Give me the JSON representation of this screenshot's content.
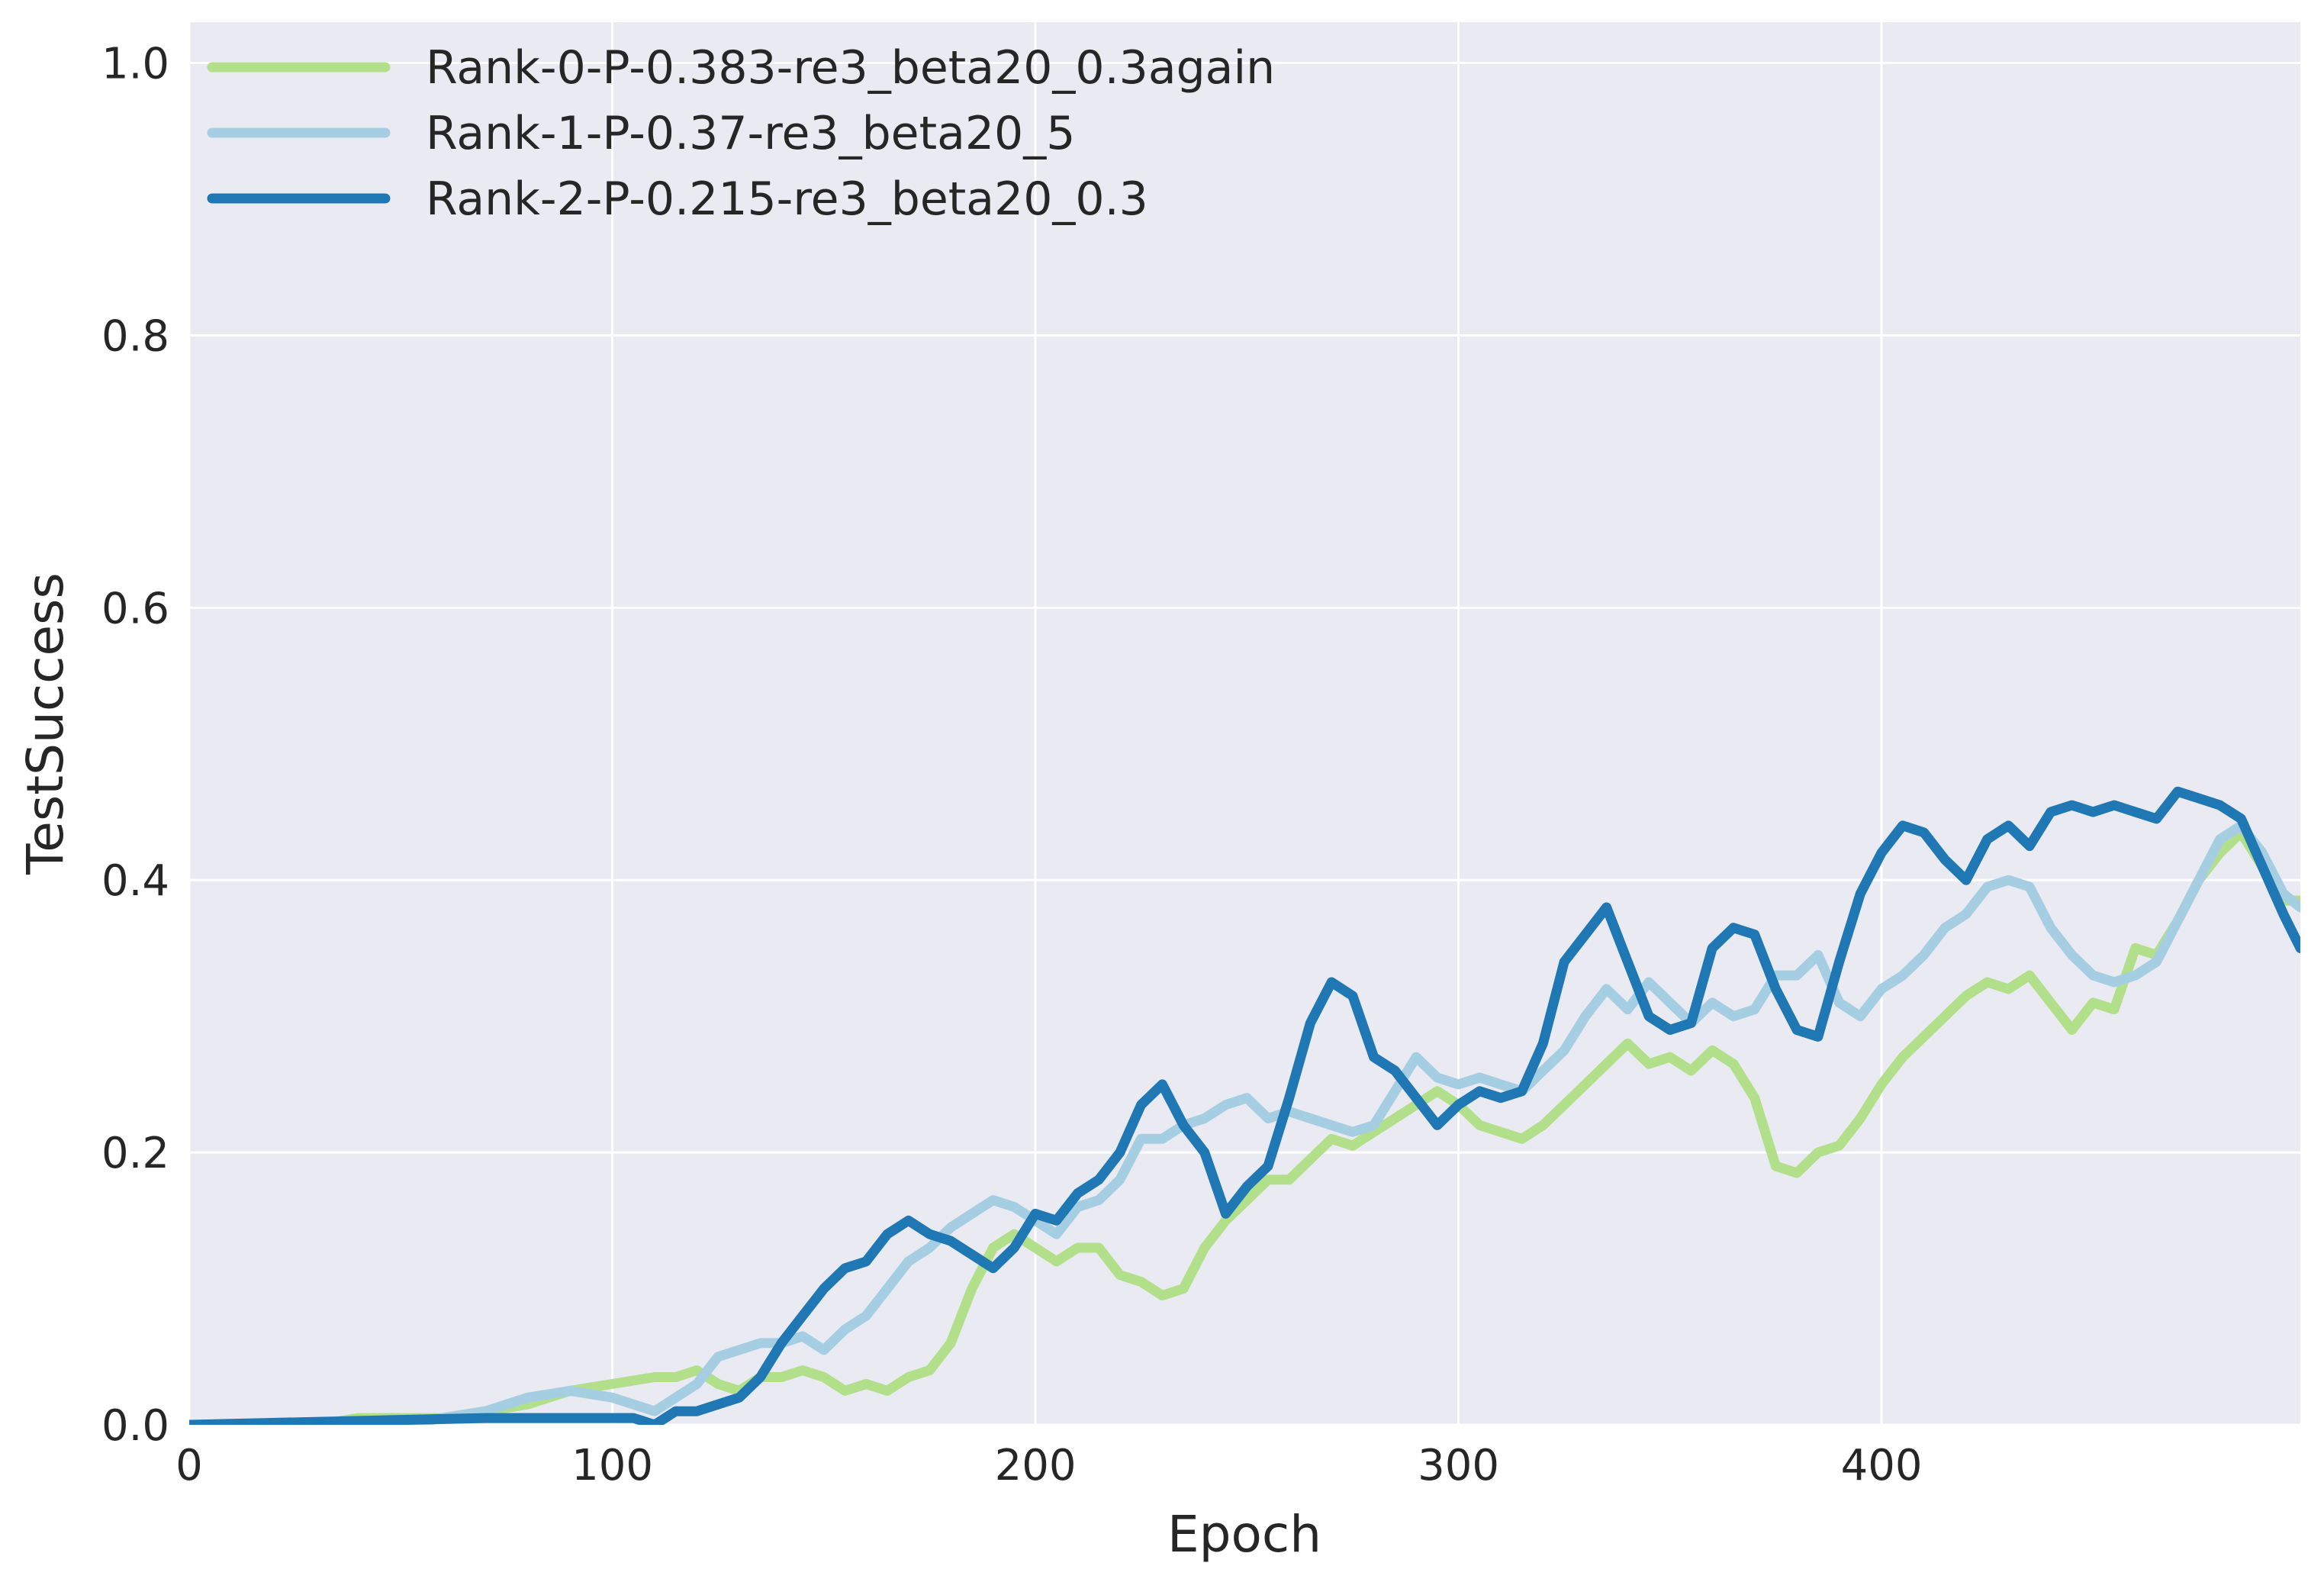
{
  "chart_data": {
    "type": "line",
    "title": "",
    "xlabel": "Epoch",
    "ylabel": "TestSuccess",
    "xlim": [
      0,
      499
    ],
    "ylim": [
      0.0,
      1.03
    ],
    "xticks": [
      0,
      100,
      200,
      300,
      400
    ],
    "yticks": [
      0.0,
      0.2,
      0.4,
      0.6,
      0.8,
      1.0
    ],
    "x_tick_labels": [
      "0",
      "100",
      "200",
      "300",
      "400"
    ],
    "y_tick_labels": [
      "0.0",
      "0.2",
      "0.4",
      "0.6",
      "0.8",
      "1.0"
    ],
    "grid": true,
    "legend_position": "top-left",
    "background_color": "#eaeaf2",
    "grid_color": "#ffffff",
    "series": [
      {
        "name": "Rank-0-P-0.383-re3_beta20_0.3again",
        "color": "#b2df8a",
        "x": [
          0,
          30,
          40,
          50,
          60,
          70,
          80,
          90,
          100,
          110,
          115,
          120,
          125,
          130,
          135,
          140,
          145,
          150,
          155,
          160,
          165,
          170,
          175,
          180,
          185,
          190,
          195,
          200,
          205,
          210,
          215,
          220,
          225,
          230,
          235,
          240,
          245,
          250,
          255,
          260,
          265,
          270,
          275,
          280,
          285,
          290,
          295,
          300,
          305,
          310,
          315,
          320,
          325,
          330,
          335,
          340,
          345,
          350,
          355,
          360,
          365,
          370,
          375,
          380,
          385,
          390,
          395,
          400,
          405,
          410,
          415,
          420,
          425,
          430,
          435,
          440,
          445,
          450,
          455,
          460,
          465,
          470,
          475,
          480,
          485,
          490,
          495,
          499
        ],
        "y": [
          0.0,
          0.0,
          0.005,
          0.005,
          0.005,
          0.01,
          0.015,
          0.025,
          0.03,
          0.035,
          0.035,
          0.04,
          0.03,
          0.025,
          0.035,
          0.035,
          0.04,
          0.035,
          0.025,
          0.03,
          0.025,
          0.035,
          0.04,
          0.06,
          0.1,
          0.13,
          0.14,
          0.13,
          0.12,
          0.13,
          0.13,
          0.11,
          0.105,
          0.095,
          0.1,
          0.13,
          0.15,
          0.165,
          0.18,
          0.18,
          0.195,
          0.21,
          0.205,
          0.215,
          0.225,
          0.235,
          0.245,
          0.235,
          0.22,
          0.215,
          0.21,
          0.22,
          0.235,
          0.25,
          0.265,
          0.28,
          0.265,
          0.27,
          0.26,
          0.275,
          0.265,
          0.24,
          0.19,
          0.185,
          0.2,
          0.205,
          0.225,
          0.25,
          0.27,
          0.285,
          0.3,
          0.315,
          0.325,
          0.32,
          0.33,
          0.31,
          0.29,
          0.31,
          0.305,
          0.35,
          0.345,
          0.37,
          0.4,
          0.42,
          0.435,
          0.41,
          0.385,
          0.385
        ]
      },
      {
        "name": "Rank-1-P-0.37-re3_beta20_5",
        "color": "#a6cee3",
        "x": [
          0,
          50,
          60,
          70,
          80,
          90,
          100,
          110,
          115,
          120,
          125,
          130,
          135,
          140,
          145,
          150,
          155,
          160,
          165,
          170,
          175,
          180,
          185,
          190,
          195,
          200,
          205,
          210,
          215,
          220,
          225,
          230,
          235,
          240,
          245,
          250,
          255,
          260,
          265,
          270,
          275,
          280,
          285,
          290,
          295,
          300,
          305,
          310,
          315,
          320,
          325,
          330,
          335,
          340,
          345,
          350,
          355,
          360,
          365,
          370,
          375,
          380,
          385,
          390,
          395,
          400,
          405,
          410,
          415,
          420,
          425,
          430,
          435,
          440,
          445,
          450,
          455,
          460,
          465,
          470,
          475,
          480,
          485,
          490,
          495,
          499
        ],
        "y": [
          0.0,
          0.0,
          0.005,
          0.01,
          0.02,
          0.025,
          0.02,
          0.01,
          0.02,
          0.03,
          0.05,
          0.055,
          0.06,
          0.06,
          0.065,
          0.055,
          0.07,
          0.08,
          0.1,
          0.12,
          0.13,
          0.145,
          0.155,
          0.165,
          0.16,
          0.15,
          0.14,
          0.16,
          0.165,
          0.18,
          0.21,
          0.21,
          0.22,
          0.225,
          0.235,
          0.24,
          0.225,
          0.23,
          0.225,
          0.22,
          0.215,
          0.22,
          0.245,
          0.27,
          0.255,
          0.25,
          0.255,
          0.25,
          0.245,
          0.26,
          0.275,
          0.3,
          0.32,
          0.305,
          0.325,
          0.31,
          0.295,
          0.31,
          0.3,
          0.305,
          0.33,
          0.33,
          0.345,
          0.31,
          0.3,
          0.32,
          0.33,
          0.345,
          0.365,
          0.375,
          0.395,
          0.4,
          0.395,
          0.365,
          0.345,
          0.33,
          0.325,
          0.33,
          0.34,
          0.37,
          0.4,
          0.43,
          0.44,
          0.42,
          0.39,
          0.38
        ]
      },
      {
        "name": "Rank-2-P-0.215-re3_beta20_0.3",
        "color": "#1f78b4",
        "x": [
          0,
          70,
          80,
          90,
          100,
          105,
          110,
          115,
          120,
          125,
          130,
          135,
          140,
          145,
          150,
          155,
          160,
          165,
          170,
          175,
          180,
          185,
          190,
          195,
          200,
          205,
          210,
          215,
          220,
          225,
          230,
          235,
          240,
          245,
          250,
          255,
          260,
          265,
          270,
          275,
          280,
          285,
          290,
          295,
          300,
          305,
          310,
          315,
          320,
          325,
          330,
          335,
          340,
          345,
          350,
          355,
          360,
          365,
          370,
          375,
          380,
          385,
          390,
          395,
          400,
          405,
          410,
          415,
          420,
          425,
          430,
          435,
          440,
          445,
          450,
          455,
          460,
          465,
          470,
          475,
          480,
          485,
          490,
          495,
          499
        ],
        "y": [
          0.0,
          0.005,
          0.005,
          0.005,
          0.005,
          0.005,
          0.0,
          0.01,
          0.01,
          0.015,
          0.02,
          0.035,
          0.06,
          0.08,
          0.1,
          0.115,
          0.12,
          0.14,
          0.15,
          0.14,
          0.135,
          0.125,
          0.115,
          0.13,
          0.155,
          0.15,
          0.17,
          0.18,
          0.2,
          0.235,
          0.25,
          0.22,
          0.2,
          0.155,
          0.175,
          0.19,
          0.24,
          0.295,
          0.325,
          0.315,
          0.27,
          0.26,
          0.24,
          0.22,
          0.235,
          0.245,
          0.24,
          0.245,
          0.28,
          0.34,
          0.36,
          0.38,
          0.34,
          0.3,
          0.29,
          0.295,
          0.35,
          0.365,
          0.36,
          0.32,
          0.29,
          0.285,
          0.34,
          0.39,
          0.42,
          0.44,
          0.435,
          0.415,
          0.4,
          0.43,
          0.44,
          0.425,
          0.45,
          0.455,
          0.45,
          0.455,
          0.45,
          0.445,
          0.465,
          0.46,
          0.455,
          0.445,
          0.41,
          0.375,
          0.35
        ]
      }
    ]
  }
}
